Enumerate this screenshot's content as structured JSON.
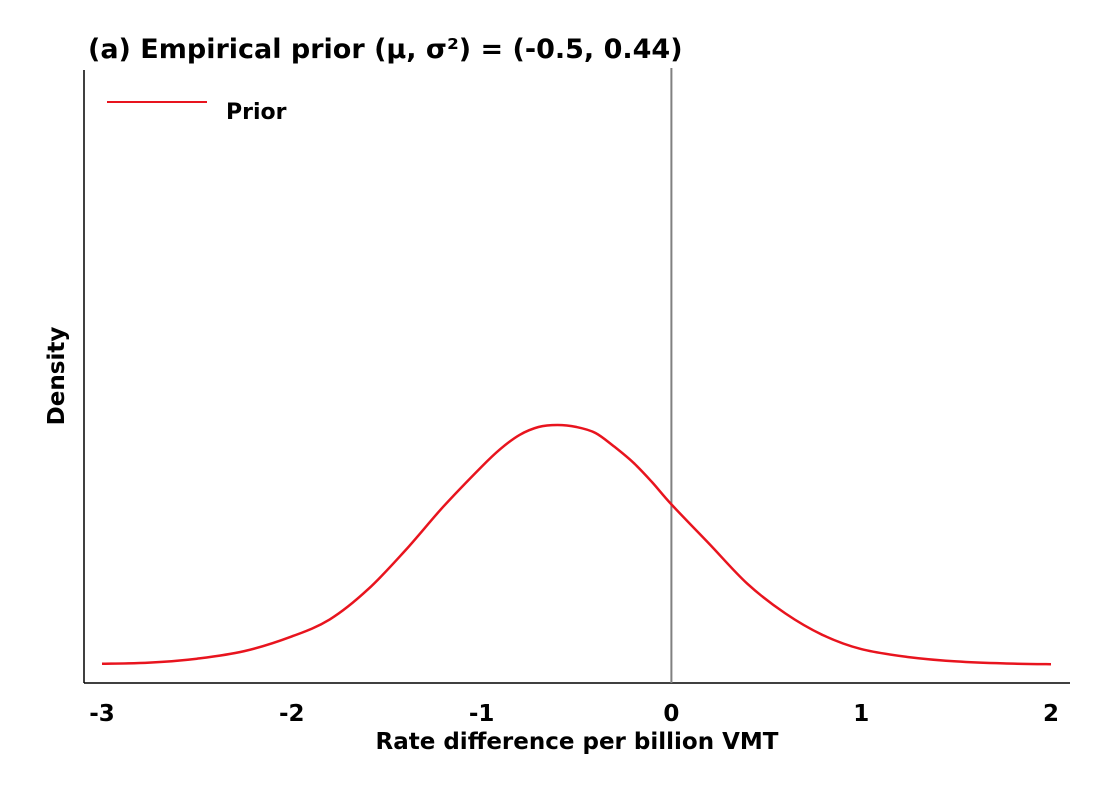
{
  "chart_data": {
    "type": "line",
    "title": "(a) Empirical prior (μ, σ²) = (-0.5, 0.44)",
    "xlabel": "Rate difference per billion VMT",
    "ylabel": "Density",
    "xlim": [
      -3,
      2
    ],
    "ylim": [
      0,
      1.5
    ],
    "x_ticks": [
      -3,
      -2,
      -1,
      0,
      1,
      2
    ],
    "x_tick_labels": [
      "-3",
      "-2",
      "-1",
      "0",
      "1",
      "2"
    ],
    "y_ticks_shown": false,
    "grid": false,
    "reference_line_x": 0,
    "legend": {
      "position": "top-left",
      "entries": [
        "Prior"
      ]
    },
    "series": [
      {
        "name": "Prior",
        "color": "#e8141e",
        "x": [
          -3.0,
          -2.75,
          -2.5,
          -2.25,
          -2.0,
          -1.8,
          -1.6,
          -1.4,
          -1.2,
          -1.0,
          -0.9,
          -0.8,
          -0.7,
          -0.6,
          -0.5,
          -0.4,
          -0.3,
          -0.2,
          -0.1,
          0.0,
          0.2,
          0.4,
          0.6,
          0.8,
          1.0,
          1.25,
          1.5,
          1.75,
          2.0
        ],
        "y": [
          0.003,
          0.006,
          0.016,
          0.035,
          0.072,
          0.115,
          0.19,
          0.29,
          0.4,
          0.5,
          0.545,
          0.58,
          0.6,
          0.605,
          0.6,
          0.585,
          0.55,
          0.51,
          0.46,
          0.405,
          0.305,
          0.205,
          0.13,
          0.075,
          0.04,
          0.02,
          0.009,
          0.004,
          0.002
        ]
      }
    ]
  }
}
